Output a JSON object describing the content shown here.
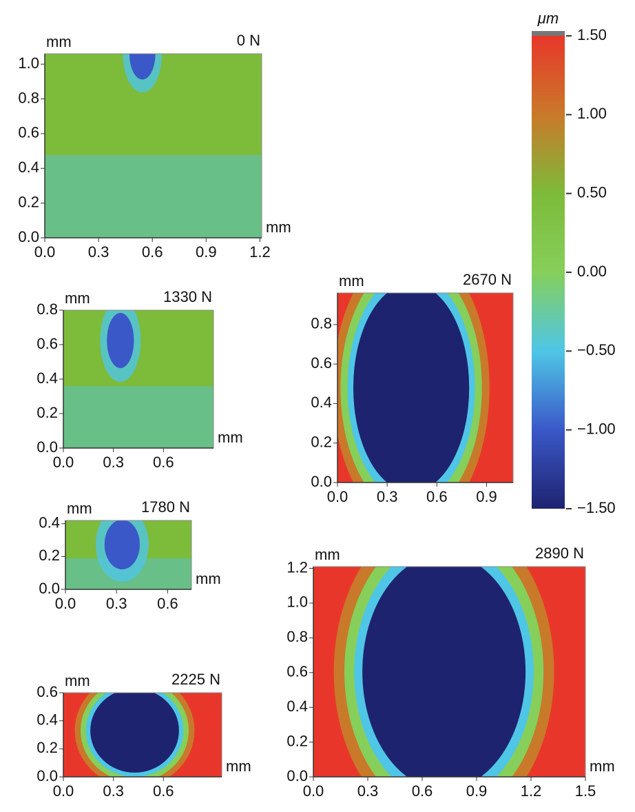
{
  "chart_data": [
    {
      "type": "heatmap",
      "title": "0 N",
      "x_label": "mm",
      "y_label": "mm",
      "xlim": [
        0,
        1.21
      ],
      "ylim": [
        0,
        1.06
      ],
      "xticks": [
        {
          "value": 0,
          "label": "0.0"
        },
        0.3,
        0.6,
        0.9,
        1.2
      ],
      "yticks": [
        {
          "value": 0,
          "label": "0.0"
        },
        0.2,
        0.4,
        0.6,
        0.8,
        {
          "value": 1,
          "label": "1.0"
        }
      ]
    },
    {
      "type": "heatmap",
      "title": "1330 N",
      "x_label": "mm",
      "y_label": "mm",
      "xlim": [
        0,
        0.9
      ],
      "ylim": [
        0,
        0.8
      ],
      "xticks": [
        {
          "value": 0,
          "label": "0.0"
        },
        0.3,
        0.6
      ],
      "yticks": [
        {
          "value": 0,
          "label": "0.0"
        },
        0.2,
        0.4,
        0.6,
        0.8
      ]
    },
    {
      "type": "heatmap",
      "title": "1780 N",
      "x_label": "mm",
      "y_label": "mm",
      "xlim": [
        0,
        0.74
      ],
      "ylim": [
        0,
        0.42
      ],
      "xticks": [
        {
          "value": 0,
          "label": "0.0"
        },
        0.3,
        0.6
      ],
      "yticks": [
        {
          "value": 0,
          "label": "0.0"
        },
        0.2,
        0.4
      ]
    },
    {
      "type": "heatmap",
      "title": "2225 N",
      "x_label": "mm",
      "y_label": "mm",
      "xlim": [
        0,
        0.95
      ],
      "ylim": [
        0,
        0.6
      ],
      "xticks": [
        {
          "value": 0,
          "label": "0.0"
        },
        0.3,
        0.6
      ],
      "yticks": [
        {
          "value": 0,
          "label": "0.0"
        },
        0.2,
        0.4,
        0.6
      ]
    },
    {
      "type": "heatmap",
      "title": "2670 N",
      "y_label": "mm",
      "xlim": [
        0,
        1.06
      ],
      "ylim": [
        0,
        0.96
      ],
      "xticks": [
        {
          "value": 0,
          "label": "0.0"
        },
        0.3,
        0.6,
        0.9
      ],
      "yticks": [
        {
          "value": 0,
          "label": "0.0"
        },
        0.2,
        0.4,
        0.6,
        0.8
      ]
    },
    {
      "type": "heatmap",
      "title": "2890 N",
      "x_label": "mm",
      "y_label": "mm",
      "xlim": [
        0,
        1.5
      ],
      "ylim": [
        0,
        1.21
      ],
      "xticks": [
        {
          "value": 0,
          "label": "0.0"
        },
        0.3,
        0.6,
        0.9,
        1.2,
        1.5
      ],
      "yticks": [
        {
          "value": 0,
          "label": "0.0"
        },
        0.2,
        0.4,
        0.6,
        0.8,
        {
          "value": 1,
          "label": "1.0"
        },
        {
          "value": 1.2,
          "label": "1.2"
        }
      ]
    },
    {
      "type": "colorbar",
      "label": "μm",
      "ylim": [
        -1.5,
        1.5
      ],
      "colors": [
        "#1e2370",
        "#3a58c8",
        "#4fc6e6",
        "#86cf5a",
        "#7dbb3a",
        "#c9792a",
        "#e8372a"
      ],
      "yticks": [
        {
          "value": 1.5,
          "label": "1.50"
        },
        {
          "value": 1,
          "label": "1.00"
        },
        {
          "value": 0.5,
          "label": "0.50"
        },
        {
          "value": 0,
          "label": "0.00"
        },
        {
          "value": -0.5,
          "label": "−0.50"
        },
        {
          "value": -1,
          "label": "−1.00"
        },
        {
          "value": -1.5,
          "label": "−1.50"
        }
      ]
    }
  ]
}
